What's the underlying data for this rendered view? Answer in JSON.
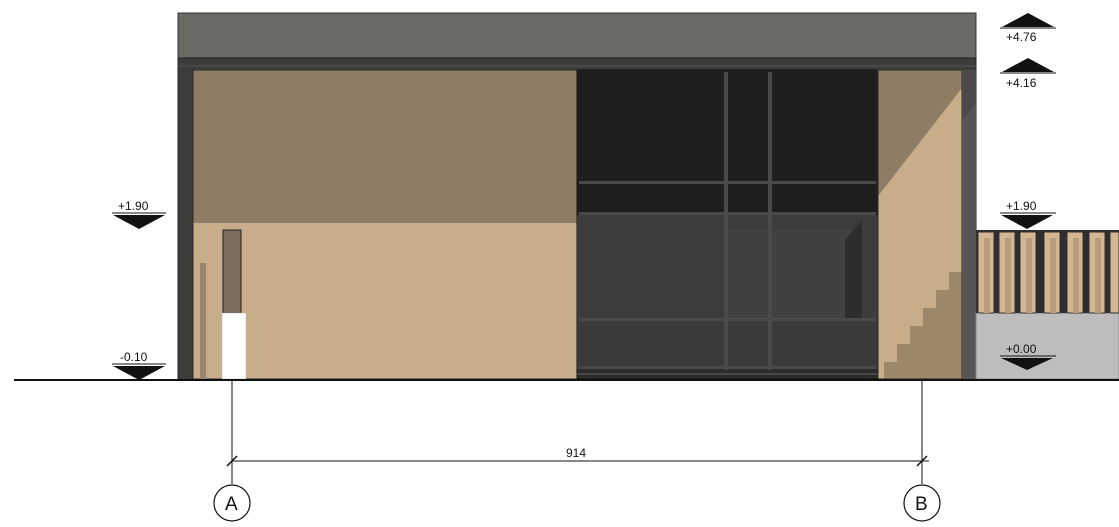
{
  "levels": {
    "left_upper": "+1.90",
    "left_lower": "-0.10",
    "right_top": "+4.76",
    "right_second": "+4.16",
    "right_middle": "+1.90",
    "right_lower": "+0.00"
  },
  "dimension": {
    "span": "914"
  },
  "axes": {
    "a": "A",
    "b": "B"
  },
  "colors": {
    "roof_band": "#6b6a64",
    "frame": "#3c3c3a",
    "wall_light": "#c7ad8a",
    "wall_shade": "#8f7c64",
    "glass": "#2b2b2b",
    "glass_dark": "#1e1e1e",
    "fence_wall": "#bdbdbd"
  },
  "icons": [
    "level-marker-up-icon",
    "level-marker-down-icon",
    "axis-bubble-icon"
  ]
}
